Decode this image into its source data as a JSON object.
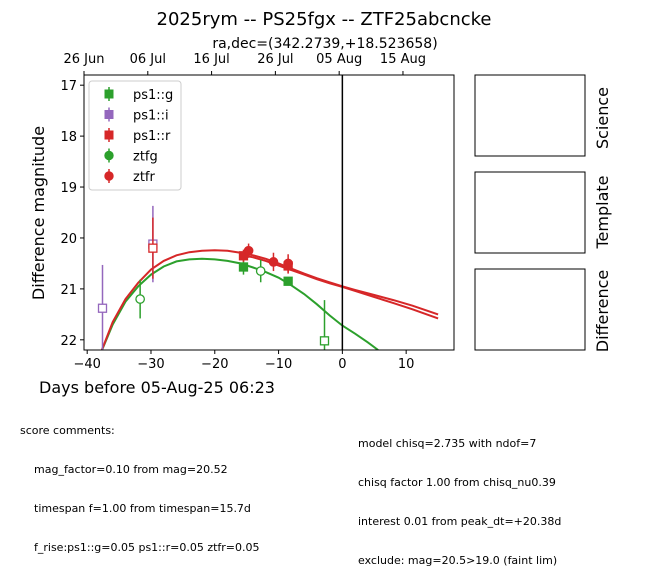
{
  "chart_data": {
    "type": "scatter",
    "title": "2025rym -- PS25fgx -- ZTF25abcncke",
    "subtitle": "ra,dec=(342.2739,+18.523658)",
    "xlabel": "Days before 05-Aug-25 06:23",
    "ylabel": "Difference magnitude",
    "xlim": [
      -40.5,
      17.5
    ],
    "ylim": [
      22.2,
      16.8
    ],
    "y_inverted": true,
    "x_ticks": [
      -40,
      -30,
      -20,
      -10,
      0,
      10
    ],
    "x_tick_labels": [
      "−40",
      "−30",
      "−20",
      "−10",
      "0",
      "10"
    ],
    "y_ticks": [
      17,
      18,
      19,
      20,
      21,
      22
    ],
    "y_tick_labels": [
      "17",
      "18",
      "19",
      "20",
      "21",
      "22"
    ],
    "top_axis_ticks": [
      {
        "x": -40.5,
        "label": "26 Jun"
      },
      {
        "x": -30.5,
        "label": "06 Jul"
      },
      {
        "x": -20.5,
        "label": "16 Jul"
      },
      {
        "x": -10.5,
        "label": "26 Jul"
      },
      {
        "x": -0.5,
        "label": "05 Aug"
      },
      {
        "x": 9.5,
        "label": "15 Aug"
      }
    ],
    "vline_x": 0,
    "legend_position": "upper-left",
    "legend": [
      {
        "label": "ps1::g",
        "color": "#2ca02c",
        "marker": "square-filled"
      },
      {
        "label": "ps1::i",
        "color": "#9467bd",
        "marker": "square-filled"
      },
      {
        "label": "ps1::r",
        "color": "#d62728",
        "marker": "square-filled"
      },
      {
        "label": "ztfg",
        "color": "#2ca02c",
        "marker": "circle-filled"
      },
      {
        "label": "ztfr",
        "color": "#d62728",
        "marker": "circle-filled"
      }
    ],
    "series": [
      {
        "name": "ps1::g",
        "color": "#2ca02c",
        "marker": "square",
        "points": [
          {
            "x": -15.5,
            "y": 20.57,
            "err": 0.15,
            "filled": true
          },
          {
            "x": -8.5,
            "y": 20.85,
            "err": 0.06,
            "filled": true
          },
          {
            "x": -2.8,
            "y": 22.02,
            "err": 0.8,
            "filled": false
          }
        ]
      },
      {
        "name": "ps1::i",
        "color": "#9467bd",
        "marker": "square",
        "points": [
          {
            "x": -37.6,
            "y": 21.38,
            "err": 0.85,
            "filled": false
          },
          {
            "x": -29.7,
            "y": 20.12,
            "err": 0.75,
            "filled": false
          }
        ]
      },
      {
        "name": "ps1::r",
        "color": "#d62728",
        "marker": "square",
        "points": [
          {
            "x": -29.7,
            "y": 20.2,
            "err": 0.6,
            "filled": false
          },
          {
            "x": -15.5,
            "y": 20.35,
            "err": 0.12,
            "filled": true
          },
          {
            "x": -8.5,
            "y": 20.55,
            "err": 0.15,
            "filled": true
          }
        ]
      },
      {
        "name": "ztfg",
        "color": "#2ca02c",
        "marker": "circle",
        "points": [
          {
            "x": -31.7,
            "y": 21.2,
            "err": 0.38,
            "filled": false
          },
          {
            "x": -12.8,
            "y": 20.65,
            "err": 0.22,
            "filled": false
          }
        ]
      },
      {
        "name": "ztfr",
        "color": "#d62728",
        "marker": "circle",
        "points": [
          {
            "x": -14.7,
            "y": 20.25,
            "err": 0.14,
            "filled": true
          },
          {
            "x": -10.8,
            "y": 20.47,
            "err": 0.18,
            "filled": true
          },
          {
            "x": -8.5,
            "y": 20.5,
            "err": 0.18,
            "filled": true
          }
        ]
      }
    ],
    "model_curves": [
      {
        "band": "g",
        "color": "#2ca02c",
        "points": [
          [
            -38,
            22.3
          ],
          [
            -36,
            21.7
          ],
          [
            -34,
            21.25
          ],
          [
            -32,
            20.95
          ],
          [
            -30,
            20.72
          ],
          [
            -28,
            20.56
          ],
          [
            -26,
            20.46
          ],
          [
            -24,
            20.42
          ],
          [
            -22,
            20.41
          ],
          [
            -20,
            20.42
          ],
          [
            -18,
            20.45
          ],
          [
            -16,
            20.5
          ],
          [
            -14,
            20.58
          ],
          [
            -12,
            20.67
          ],
          [
            -10,
            20.78
          ],
          [
            -8,
            20.93
          ],
          [
            -6,
            21.1
          ],
          [
            -4,
            21.3
          ],
          [
            -2,
            21.52
          ],
          [
            0,
            21.72
          ],
          [
            2,
            21.88
          ],
          [
            4,
            22.05
          ],
          [
            5.6,
            22.2
          ]
        ]
      },
      {
        "band": "r",
        "color": "#d62728",
        "points": [
          [
            -38,
            22.3
          ],
          [
            -36,
            21.65
          ],
          [
            -34,
            21.2
          ],
          [
            -32,
            20.88
          ],
          [
            -30,
            20.62
          ],
          [
            -28,
            20.45
          ],
          [
            -26,
            20.34
          ],
          [
            -24,
            20.28
          ],
          [
            -22,
            20.25
          ],
          [
            -20,
            20.24
          ],
          [
            -18,
            20.25
          ],
          [
            -16,
            20.29
          ],
          [
            -14,
            20.34
          ],
          [
            -12,
            20.41
          ],
          [
            -10,
            20.5
          ],
          [
            -8,
            20.6
          ],
          [
            -6,
            20.7
          ],
          [
            -4,
            20.79
          ],
          [
            -2,
            20.87
          ],
          [
            0,
            20.95
          ],
          [
            2,
            21.02
          ],
          [
            5,
            21.12
          ],
          [
            8,
            21.22
          ],
          [
            11,
            21.33
          ],
          [
            15,
            21.5
          ]
        ]
      },
      {
        "band": "r2",
        "color": "#d62728",
        "points": [
          [
            -16,
            20.33
          ],
          [
            -14,
            20.38
          ],
          [
            -12,
            20.45
          ],
          [
            -10,
            20.54
          ],
          [
            -8,
            20.63
          ],
          [
            -6,
            20.72
          ],
          [
            -4,
            20.81
          ],
          [
            -2,
            20.89
          ],
          [
            0,
            20.96
          ],
          [
            2,
            21.04
          ],
          [
            5,
            21.16
          ],
          [
            8,
            21.28
          ],
          [
            11,
            21.4
          ],
          [
            15,
            21.58
          ]
        ]
      }
    ]
  },
  "panels": {
    "science_label": "Science",
    "template_label": "Template",
    "difference_label": "Difference"
  },
  "score_comments": {
    "header": "score comments:",
    "left_lines": [
      "mag_factor=0.10 from mag=20.52",
      "timespan f=1.00 from timespan=15.7d",
      "f_rise:ps1::g=0.05 ps1::r=0.05 ztfr=0.05"
    ],
    "right_lines": [
      "model chisq=2.735 with ndof=7",
      "chisq factor 1.00 from chisq_nu0.39",
      "interest 0.01 from peak_dt=+20.38d",
      "exclude: mag=20.5>19.0 (faint lim)"
    ]
  }
}
